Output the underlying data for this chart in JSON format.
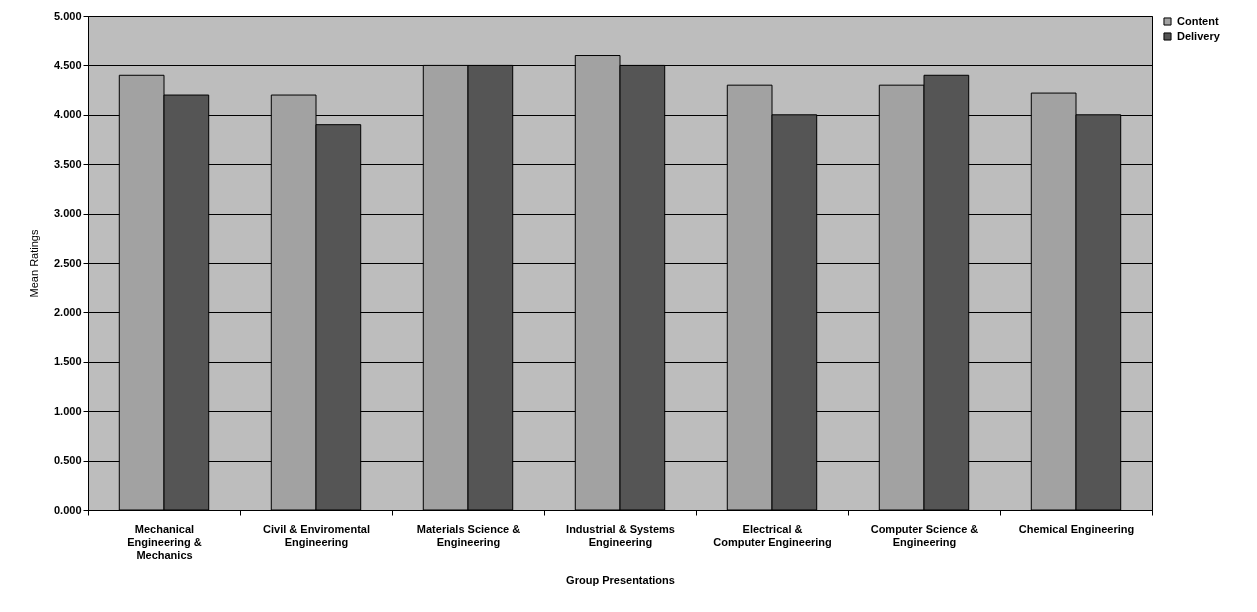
{
  "chart_data": {
    "type": "bar",
    "xlabel": "Group Presentations",
    "ylabel": "Mean Ratings",
    "categories": [
      "Mechanical Engineering & Mechanics",
      "Civil & Enviromental Engineering",
      "Materials Science & Engineering",
      "Industrial & Systems Engineering",
      "Electrical & Computer Engineering",
      "Computer Science & Engineering",
      "Chemical Engineering"
    ],
    "series": [
      {
        "name": "Content",
        "color": "#a2a2a2",
        "values": [
          4.4,
          4.2,
          4.5,
          4.6,
          4.3,
          4.3,
          4.22
        ]
      },
      {
        "name": "Delivery",
        "color": "#555555",
        "values": [
          4.2,
          3.9,
          4.5,
          4.5,
          4.0,
          4.4,
          4.0
        ]
      }
    ],
    "ylim": [
      0,
      5
    ],
    "yticks": [
      {
        "value": 0,
        "label": "0.000"
      },
      {
        "value": 0.5,
        "label": "0.500"
      },
      {
        "value": 1,
        "label": "1.000"
      },
      {
        "value": 1.5,
        "label": "1.500"
      },
      {
        "value": 2,
        "label": "2.000"
      },
      {
        "value": 2.5,
        "label": "2.500"
      },
      {
        "value": 3,
        "label": "3.000"
      },
      {
        "value": 3.5,
        "label": "3.500"
      },
      {
        "value": 4,
        "label": "4.000"
      },
      {
        "value": 4.5,
        "label": "4.500"
      },
      {
        "value": 5,
        "label": "5.000"
      }
    ],
    "grid": "y",
    "legend": "right"
  }
}
